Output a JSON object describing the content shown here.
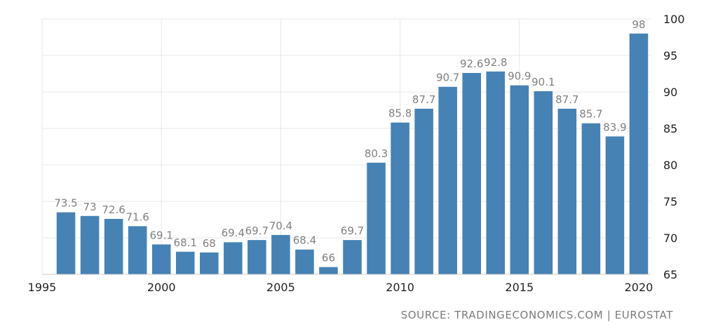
{
  "chart_data": {
    "type": "bar",
    "x": [
      1996,
      1997,
      1998,
      1999,
      2000,
      2001,
      2002,
      2003,
      2004,
      2005,
      2006,
      2007,
      2008,
      2009,
      2010,
      2011,
      2012,
      2013,
      2014,
      2015,
      2016,
      2017,
      2018,
      2019,
      2020
    ],
    "values": [
      73.5,
      73,
      72.6,
      71.6,
      69.1,
      68.1,
      68,
      69.4,
      69.7,
      70.4,
      68.4,
      66,
      69.7,
      80.3,
      85.8,
      87.7,
      90.7,
      92.6,
      92.8,
      90.9,
      90.1,
      87.7,
      85.7,
      83.9,
      98
    ],
    "value_labels": [
      "73.5",
      "73",
      "72.6",
      "71.6",
      "69.1",
      "68.1",
      "68",
      "69.4",
      "69.7",
      "70.4",
      "68.4",
      "66",
      "69.7",
      "80.3",
      "85.8",
      "87.7",
      "90.7",
      "92.6",
      "92.8",
      "90.9",
      "90.1",
      "87.7",
      "85.7",
      "83.9",
      "98"
    ],
    "xticks": [
      1995,
      2000,
      2005,
      2010,
      2015,
      2020
    ],
    "xtick_labels": [
      "1995",
      "2000",
      "2005",
      "2010",
      "2015",
      "2020"
    ],
    "yticks": [
      65,
      70,
      75,
      80,
      85,
      90,
      95,
      100
    ],
    "ytick_labels": [
      "65",
      "70",
      "75",
      "80",
      "85",
      "90",
      "95",
      "100"
    ],
    "ylim": [
      65,
      100
    ],
    "xlim": [
      1995,
      2020.5
    ],
    "title": "",
    "xlabel": "",
    "ylabel": "",
    "y_axis_side": "right",
    "grid": true,
    "colors": {
      "bar": "#4682b4",
      "grid": "#e8e8e8",
      "label": "#808080",
      "tick": "#222222"
    }
  },
  "source": "SOURCE: TRADINGECONOMICS.COM | EUROSTAT"
}
